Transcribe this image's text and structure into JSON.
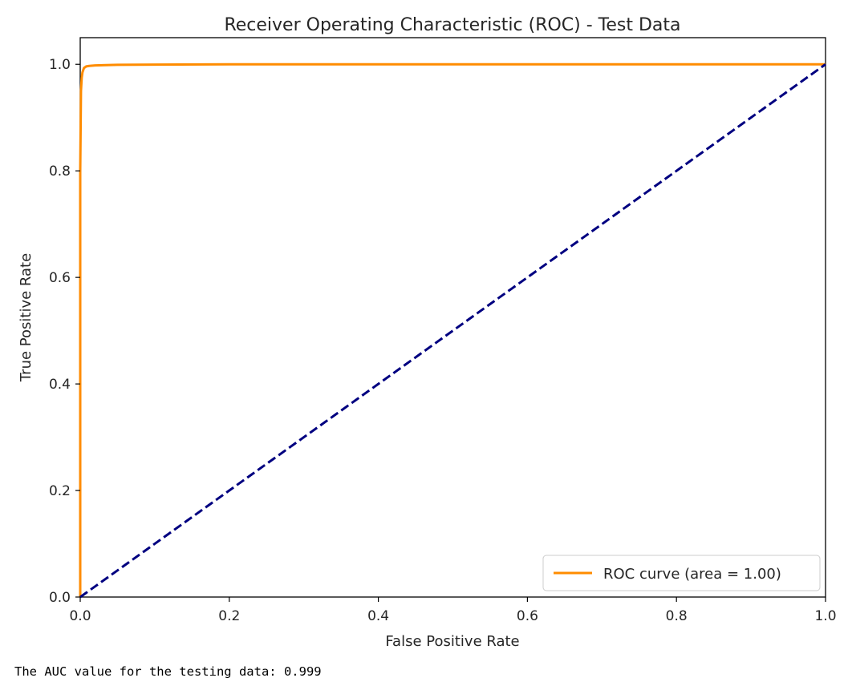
{
  "chart_data": {
    "type": "line",
    "title": "Receiver Operating Characteristic (ROC) - Test Data",
    "xlabel": "False Positive Rate",
    "ylabel": "True Positive Rate",
    "xlim": [
      0.0,
      1.0
    ],
    "ylim": [
      0.0,
      1.05
    ],
    "x_ticks": [
      "0.0",
      "0.2",
      "0.4",
      "0.6",
      "0.8",
      "1.0"
    ],
    "y_ticks": [
      "0.0",
      "0.2",
      "0.4",
      "0.6",
      "0.8",
      "1.0"
    ],
    "grid": false,
    "legend_position": "lower-right",
    "series": [
      {
        "name": "ROC curve (area = 1.00)",
        "color": "#ff8c00",
        "style": "solid",
        "x": [
          0.0,
          0.0,
          0.001,
          0.002,
          0.003,
          0.005,
          0.008,
          0.012,
          0.02,
          0.05,
          0.1,
          0.2,
          0.5,
          0.8,
          1.0
        ],
        "y": [
          0.0,
          0.8,
          0.95,
          0.975,
          0.985,
          0.993,
          0.996,
          0.997,
          0.998,
          0.999,
          0.9995,
          1.0,
          1.0,
          1.0,
          1.0
        ]
      },
      {
        "color": "#000080",
        "style": "dashed",
        "x": [
          0.0,
          1.0
        ],
        "y": [
          0.0,
          1.0
        ]
      }
    ]
  },
  "output": {
    "auc_text": "The AUC value for the testing data: 0.999"
  }
}
